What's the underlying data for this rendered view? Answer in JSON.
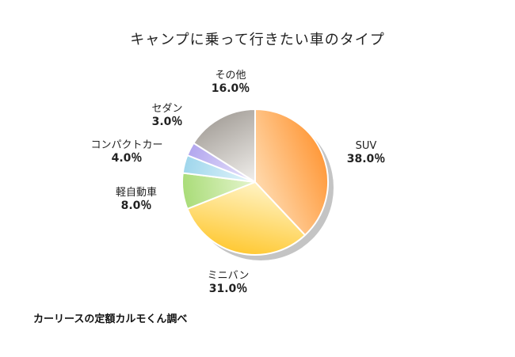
{
  "chart_data": {
    "type": "pie",
    "title": "キャンプに乗って行きたい車のタイプ",
    "slices": [
      {
        "label": "SUV",
        "value_label": "38.0％",
        "value": 38.0,
        "color_light": "#ffd9ad",
        "color_dark": "#ff9a3c"
      },
      {
        "label": "ミニバン",
        "value_label": "31.0％",
        "value": 31.0,
        "color_light": "#fff3c4",
        "color_dark": "#ffc934"
      },
      {
        "label": "軽自動車",
        "value_label": "8.0％",
        "value": 8.0,
        "color_light": "#e6f5cf",
        "color_dark": "#a9dc78"
      },
      {
        "label": "コンパクトカー",
        "value_label": "4.0％",
        "value": 4.0,
        "color_light": "#e6f6fb",
        "color_dark": "#9fd6ec"
      },
      {
        "label": "セダン",
        "value_label": "3.0％",
        "value": 3.0,
        "color_light": "#ebe6fb",
        "color_dark": "#b2a6ee"
      },
      {
        "label": "その他",
        "value_label": "16.0％",
        "value": 16.0,
        "color_light": "#f1efec",
        "color_dark": "#aaa59f"
      }
    ],
    "source": "カーリースの定額カルモくん調べ"
  }
}
